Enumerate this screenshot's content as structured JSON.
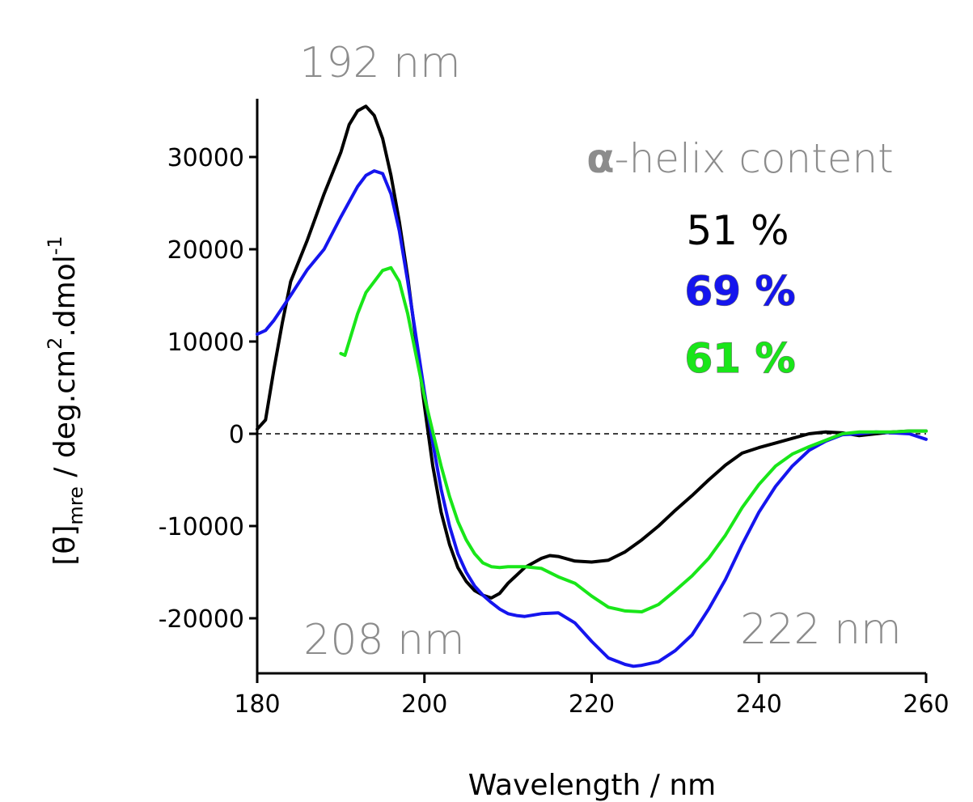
{
  "chart_data": {
    "type": "line",
    "xlabel": "Wavelength / nm",
    "ylabel": {
      "main": "[θ]",
      "sub": "mre",
      "rest": " / deg.cm",
      "sup2": "2",
      "rest2": ".dmol",
      "sup3": "-1"
    },
    "xlim": [
      180,
      260
    ],
    "ylim": [
      -26000,
      36000
    ],
    "xticks": [
      180,
      200,
      220,
      240,
      260
    ],
    "yticks": [
      30000,
      20000,
      10000,
      0,
      -10000,
      -20000
    ],
    "zero_line": "dashed",
    "annotations": {
      "peak_top": "192 nm",
      "peak_208": "208 nm",
      "peak_222": "222 nm",
      "helix_title_symbol": "α",
      "helix_title_rest": "-helix content"
    },
    "series": [
      {
        "label": "51 %",
        "color": "#000000",
        "x": [
          180,
          181,
          182,
          183,
          184,
          186,
          188,
          190,
          191,
          192,
          193,
          194,
          195,
          196,
          197,
          198,
          199,
          200,
          201,
          202,
          203,
          204,
          205,
          206,
          207,
          208,
          209,
          210,
          212,
          214,
          215,
          216,
          218,
          220,
          222,
          224,
          226,
          228,
          230,
          232,
          234,
          236,
          238,
          240,
          242,
          244,
          246,
          248,
          250,
          252,
          254,
          256,
          258,
          260
        ],
        "y": [
          500,
          1500,
          7000,
          12000,
          16500,
          21000,
          26000,
          30500,
          33500,
          35000,
          35500,
          34500,
          32000,
          28000,
          23000,
          17000,
          10000,
          3000,
          -3500,
          -8500,
          -12000,
          -14500,
          -16000,
          -17000,
          -17500,
          -17800,
          -17300,
          -16200,
          -14500,
          -13500,
          -13200,
          -13300,
          -13800,
          -13900,
          -13700,
          -12800,
          -11500,
          -10000,
          -8300,
          -6700,
          -5000,
          -3400,
          -2100,
          -1500,
          -1000,
          -500,
          0,
          200,
          100,
          -200,
          0,
          200,
          300,
          300
        ]
      },
      {
        "label": "69 %",
        "color": "#1515ee",
        "x": [
          180,
          181,
          182,
          184,
          186,
          188,
          190,
          192,
          193,
          194,
          195,
          196,
          197,
          198,
          199,
          200,
          201,
          202,
          203,
          204,
          205,
          206,
          207,
          208,
          209,
          210,
          211,
          212,
          214,
          216,
          218,
          220,
          222,
          224,
          225,
          226,
          228,
          230,
          232,
          234,
          236,
          238,
          240,
          242,
          244,
          246,
          248,
          250,
          252,
          254,
          256,
          258,
          260
        ],
        "y": [
          10800,
          11200,
          12300,
          15000,
          17800,
          20000,
          23500,
          26800,
          28000,
          28500,
          28200,
          26000,
          22000,
          16500,
          10500,
          4500,
          -1000,
          -6000,
          -10000,
          -13000,
          -15000,
          -16500,
          -17500,
          -18300,
          -19000,
          -19500,
          -19700,
          -19800,
          -19500,
          -19400,
          -20500,
          -22500,
          -24300,
          -25000,
          -25200,
          -25100,
          -24700,
          -23500,
          -21800,
          -19000,
          -15800,
          -12000,
          -8500,
          -5700,
          -3500,
          -1800,
          -800,
          -100,
          0,
          200,
          100,
          0,
          -600
        ]
      },
      {
        "label": "61 %",
        "color": "#19e619",
        "x": [
          190,
          190.5,
          191,
          192,
          193,
          194,
          195,
          196,
          197,
          198,
          199,
          200,
          201,
          202,
          203,
          204,
          205,
          206,
          207,
          208,
          209,
          210,
          212,
          214,
          216,
          218,
          220,
          222,
          224,
          226,
          228,
          230,
          232,
          234,
          236,
          238,
          240,
          242,
          244,
          246,
          248,
          250,
          252,
          254,
          256,
          258,
          260
        ],
        "y": [
          8700,
          8500,
          10000,
          13000,
          15300,
          16500,
          17700,
          18000,
          16500,
          13000,
          8500,
          4000,
          200,
          -3500,
          -6800,
          -9500,
          -11500,
          -13000,
          -14000,
          -14400,
          -14500,
          -14400,
          -14400,
          -14600,
          -15500,
          -16200,
          -17600,
          -18800,
          -19200,
          -19300,
          -18500,
          -17000,
          -15400,
          -13500,
          -11000,
          -8000,
          -5500,
          -3500,
          -2200,
          -1400,
          -700,
          0,
          200,
          200,
          200,
          300,
          300
        ]
      }
    ]
  }
}
